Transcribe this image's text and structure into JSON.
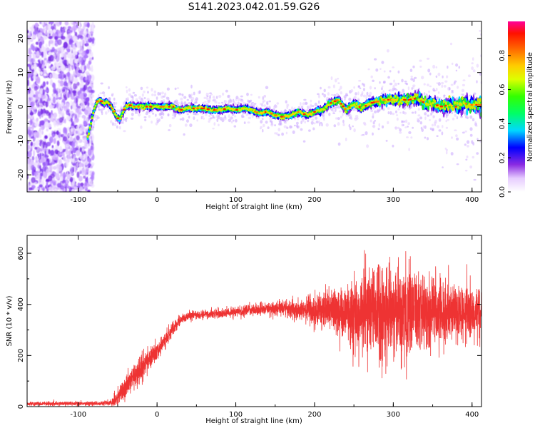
{
  "figure": {
    "title": "S141.2023.042.01.59.G26"
  },
  "chart_data": [
    {
      "type": "heatmap",
      "xlabel": "Height of straight line (km)",
      "ylabel": "Frequency (Hz)",
      "xlim": [
        -165,
        412
      ],
      "ylim": [
        -25,
        25
      ],
      "xticks": [
        -100,
        0,
        100,
        200,
        300,
        400
      ],
      "yticks": [
        -20,
        -10,
        0,
        10,
        20
      ],
      "colorbar": {
        "label": "Normalized spectral amplitude",
        "range": [
          0,
          1
        ],
        "ticks": [
          0.0,
          0.2,
          0.4,
          0.6,
          0.8
        ]
      },
      "noise_region_x": [
        -165,
        -85
      ],
      "frequency_trace": {
        "x": [
          -88,
          -84,
          -80,
          -76,
          -72,
          -68,
          -64,
          -60,
          -56,
          -52,
          -48,
          -44,
          -40,
          -35,
          -30,
          -20,
          -10,
          0,
          10,
          20,
          30,
          40,
          50,
          60,
          70,
          80,
          90,
          100,
          110,
          120,
          130,
          140,
          150,
          160,
          170,
          180,
          190,
          200,
          210,
          220,
          230,
          240,
          250,
          260,
          270,
          280,
          290,
          300,
          310,
          320,
          330,
          340,
          350,
          360,
          370,
          380,
          390,
          400,
          410
        ],
        "y": [
          -9,
          -5,
          -1,
          1.5,
          2,
          1,
          1.5,
          0.5,
          -1,
          -2.5,
          -4,
          -2,
          0,
          0.5,
          0,
          0,
          0,
          0,
          0,
          0,
          -1,
          -0.5,
          -0.5,
          -0.5,
          -1,
          -1,
          -0.5,
          -1,
          -0.5,
          -1,
          -2,
          -1.5,
          -2.5,
          -3,
          -2.5,
          -1.5,
          -2.5,
          -1.5,
          -1,
          1,
          2,
          -1,
          1,
          -0.5,
          1,
          1.5,
          2,
          2,
          2,
          2,
          2.5,
          1,
          1,
          0,
          0.5,
          0,
          1,
          0.5,
          0.5
        ]
      }
    },
    {
      "type": "line",
      "xlabel": "Height of straight line (km)",
      "ylabel": "SNR (10 * v/v)",
      "xlim": [
        -165,
        412
      ],
      "ylim": [
        0,
        670
      ],
      "xticks": [
        -100,
        0,
        100,
        200,
        300,
        400
      ],
      "yticks": [
        0,
        200,
        400,
        600
      ],
      "color": "#ee3333",
      "series": [
        {
          "x": [
            -165,
            -120,
            -80,
            -60,
            -50,
            -40,
            -30,
            -20,
            -10,
            0,
            10,
            20,
            30,
            40,
            60,
            80,
            100,
            120,
            140,
            160,
            180,
            200,
            220,
            240,
            260,
            280,
            300,
            320,
            340,
            360,
            380,
            400,
            412
          ],
          "mean": [
            12,
            12,
            12,
            15,
            35,
            80,
            120,
            150,
            185,
            215,
            255,
            305,
            340,
            355,
            360,
            365,
            372,
            378,
            382,
            386,
            380,
            380,
            375,
            370,
            365,
            370,
            370,
            368,
            365,
            365,
            360,
            360,
            360
          ],
          "spread": [
            6,
            6,
            6,
            8,
            20,
            30,
            35,
            35,
            30,
            25,
            22,
            20,
            15,
            12,
            12,
            12,
            14,
            15,
            18,
            22,
            30,
            45,
            60,
            80,
            110,
            140,
            140,
            125,
            105,
            90,
            80,
            70,
            65
          ]
        }
      ]
    }
  ]
}
